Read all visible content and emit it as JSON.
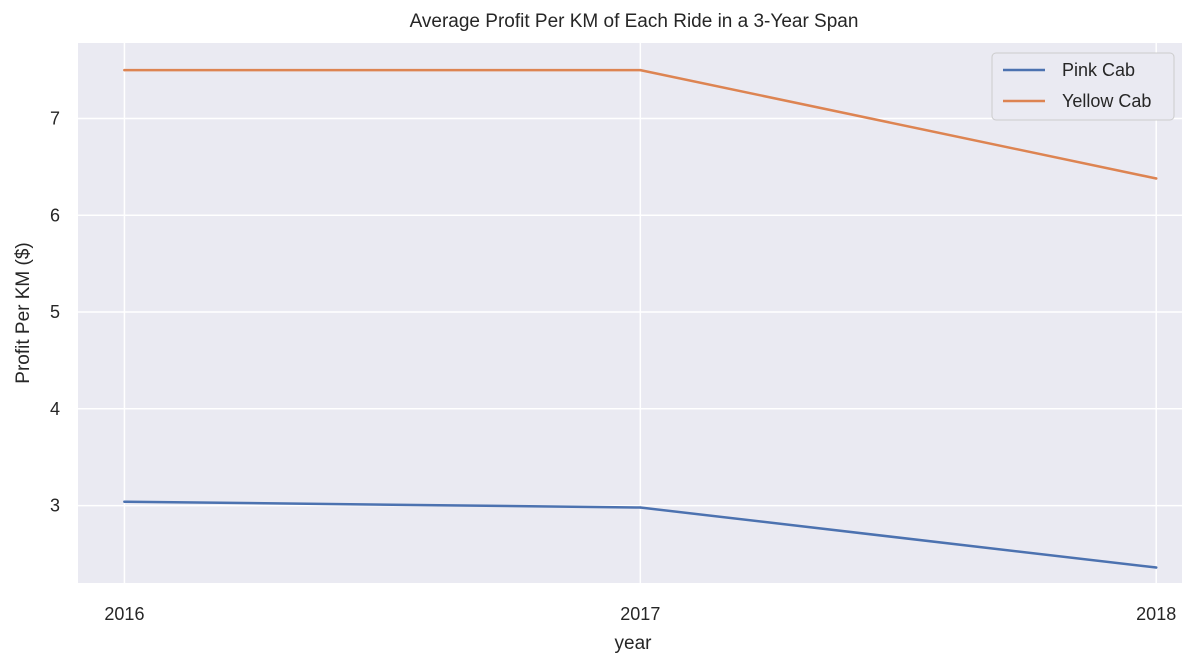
{
  "chart_data": {
    "type": "line",
    "title": "Average Profit Per KM of Each Ride in a 3-Year Span",
    "xlabel": "year",
    "ylabel": "Profit Per KM ($)",
    "x": [
      2016,
      2017,
      2018
    ],
    "x_tick_labels": [
      "2016",
      "2017",
      "2018"
    ],
    "y_ticks": [
      3,
      4,
      5,
      6,
      7
    ],
    "y_tick_labels": [
      "3",
      "4",
      "5",
      "6",
      "7"
    ],
    "xlim": [
      2015.91,
      2018.05
    ],
    "ylim": [
      2.2,
      7.78
    ],
    "grid": true,
    "legend_position": "top-right",
    "background_color": "#eaeaf2",
    "series": [
      {
        "name": "Pink Cab",
        "color": "#4c72b0",
        "values": [
          3.04,
          2.98,
          2.36
        ]
      },
      {
        "name": "Yellow Cab",
        "color": "#dd8452",
        "values": [
          7.5,
          7.5,
          6.38
        ]
      }
    ]
  }
}
